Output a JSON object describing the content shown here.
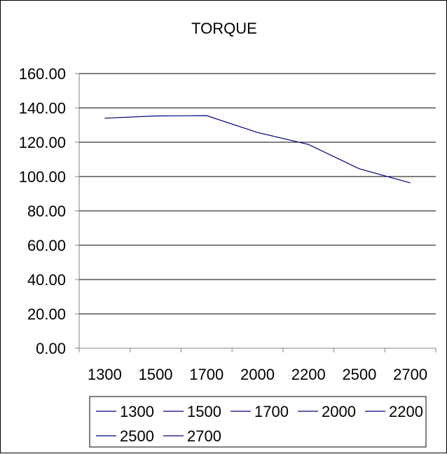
{
  "chart_data": {
    "type": "line",
    "title": "TORQUE",
    "xlabel": "",
    "ylabel": "",
    "categories": [
      "1300",
      "1500",
      "1700",
      "2000",
      "2200",
      "2500",
      "2700"
    ],
    "series": [
      {
        "values": [
          134.0,
          135.3,
          135.5,
          125.7,
          118.7,
          104.5,
          96.3
        ]
      }
    ],
    "ylim": [
      0,
      160
    ],
    "y_ticks": [
      "0.00",
      "20.00",
      "40.00",
      "60.00",
      "80.00",
      "100.00",
      "120.00",
      "140.00",
      "160.00"
    ],
    "grid": true,
    "legend": {
      "position": "bottom",
      "entries": [
        "1300",
        "1500",
        "1700",
        "2000",
        "2200",
        "2500",
        "2700"
      ]
    },
    "colors": {
      "line": "#000080",
      "grid": "#000000",
      "axis": "#808080",
      "background": "#ffffff"
    }
  }
}
